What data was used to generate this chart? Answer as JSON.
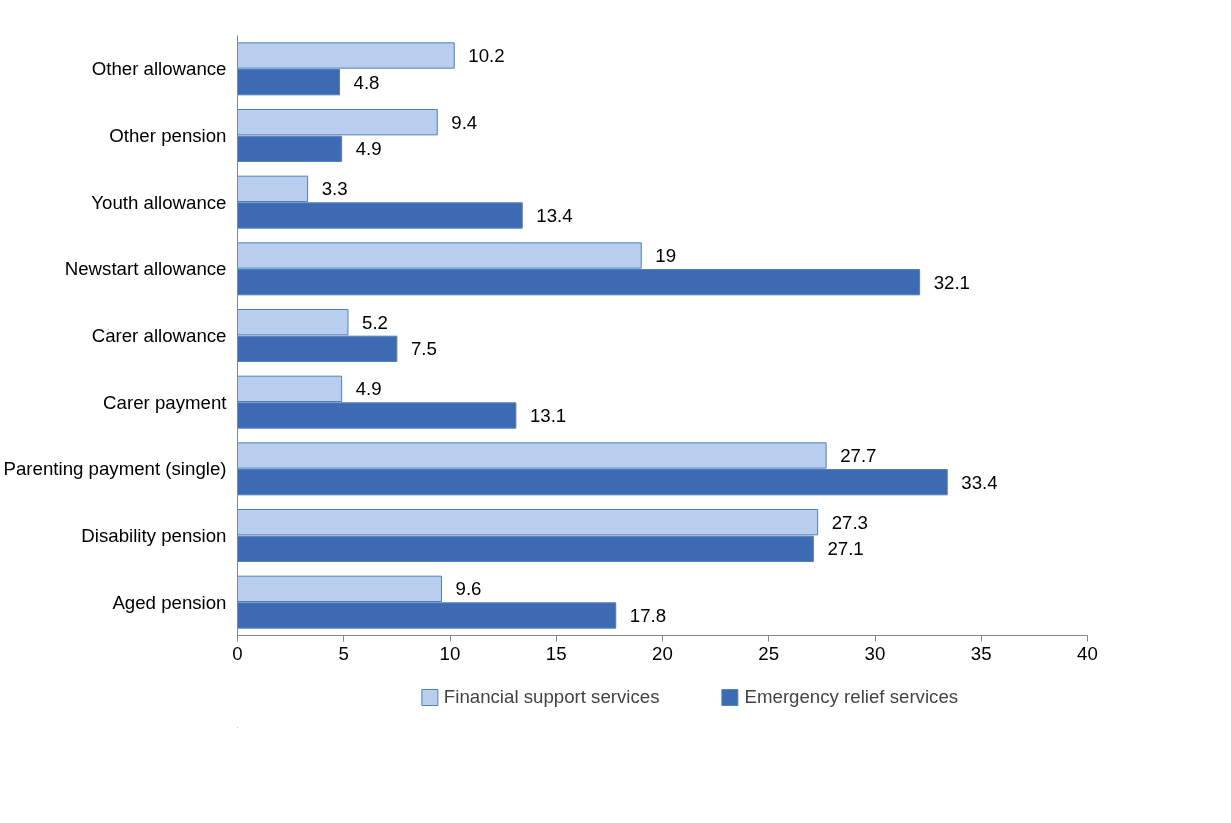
{
  "chart_data": {
    "type": "bar",
    "orientation": "horizontal",
    "categories": [
      "Other allowance",
      "Other pension",
      "Youth allowance",
      "Newstart allowance",
      "Carer allowance",
      "Carer payment",
      "Parenting payment (single)",
      "Disability pension",
      "Aged pension"
    ],
    "series": [
      {
        "name": "Financial support services",
        "color": "#b9cdee",
        "values": [
          10.2,
          9.4,
          3.3,
          19,
          5.2,
          4.9,
          27.7,
          27.3,
          9.6
        ]
      },
      {
        "name": "Emergency relief services",
        "color": "#3d6bb3",
        "values": [
          4.8,
          4.9,
          13.4,
          32.1,
          7.5,
          13.1,
          33.4,
          27.1,
          17.8
        ]
      }
    ],
    "xlim": [
      0,
      40
    ],
    "xticks": [
      0,
      5,
      10,
      15,
      20,
      25,
      30,
      35,
      40
    ],
    "data_labels": true,
    "grid": false,
    "legend": "bottom"
  }
}
